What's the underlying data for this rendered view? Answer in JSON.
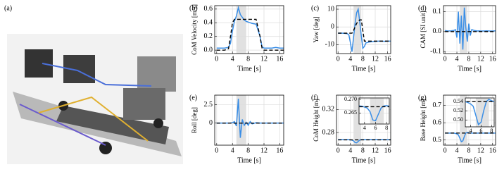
{
  "photo_label": "(a)",
  "chart_data": [
    {
      "type": "line",
      "panel_label": "(b)",
      "ylabel": "CoM Velocity [m/s]",
      "xlabel": "Time [s]",
      "x": [
        0,
        1,
        2,
        3,
        3.5,
        4,
        4.5,
        5,
        5.5,
        6,
        6.5,
        7,
        7.5,
        8,
        8.5,
        9,
        10,
        11,
        11.5,
        12,
        13,
        14,
        15,
        16,
        17
      ],
      "series": [
        {
          "color": "#3a8ee6",
          "dash": false,
          "values": [
            0.03,
            0.03,
            0.03,
            0.04,
            0.1,
            0.28,
            0.42,
            0.5,
            0.62,
            0.52,
            0.48,
            0.44,
            0.42,
            0.41,
            0.4,
            0.39,
            0.38,
            0.2,
            0.05,
            0.03,
            0.03,
            0.03,
            0.04,
            0.03,
            0.03
          ]
        },
        {
          "color": "#000000",
          "dash": true,
          "values": [
            0,
            0,
            0,
            0.02,
            0.2,
            0.4,
            0.45,
            0.45,
            0.45,
            0.45,
            0.45,
            0.45,
            0.45,
            0.45,
            0.45,
            0.45,
            0.45,
            0.2,
            0.03,
            0,
            0,
            0,
            0,
            0,
            0
          ]
        }
      ],
      "xlim": [
        -0.5,
        17
      ],
      "ylim": [
        -0.05,
        0.65
      ],
      "xticks": [
        0,
        4,
        8,
        12,
        16
      ],
      "yticks": [
        {
          "value": 0,
          "label": "0.0"
        },
        0.2,
        0.4,
        0.6
      ],
      "highlight_x": [
        5,
        7.5
      ],
      "grid": true
    },
    {
      "type": "line",
      "panel_label": "(c)",
      "ylabel": "Yaw [deg]",
      "xlabel": "Time [s]",
      "x": [
        0,
        1,
        2,
        3,
        3.5,
        4,
        4.5,
        5,
        5.5,
        6,
        6.5,
        7,
        7.5,
        8,
        8.5,
        9,
        10,
        11,
        11.5,
        12,
        13,
        14,
        15,
        16,
        17
      ],
      "series": [
        {
          "color": "#3a8ee6",
          "dash": false,
          "values": [
            -3.5,
            -3.5,
            -3.6,
            -3.8,
            -4.5,
            -9,
            -14,
            -6,
            2,
            8,
            10,
            3,
            -5,
            -12,
            -11,
            -9,
            -8.5,
            -8.3,
            -8.2,
            -8.2,
            -8,
            -8,
            -8.1,
            -8,
            -8
          ]
        },
        {
          "color": "#000000",
          "dash": true,
          "values": [
            -3.5,
            -3.5,
            -3.5,
            -3.5,
            -3.5,
            -3.5,
            -3.5,
            -2,
            0,
            2,
            3,
            4,
            4,
            -2,
            -8,
            -8,
            -8,
            -8,
            -8,
            -8,
            -8,
            -8,
            -8,
            -8,
            -8
          ]
        }
      ],
      "xlim": [
        -0.5,
        17
      ],
      "ylim": [
        -15,
        12
      ],
      "xticks": [
        0,
        4,
        8,
        12,
        16
      ],
      "yticks": [
        -10,
        0,
        10
      ],
      "highlight_x": [
        5,
        7.5
      ],
      "grid": true
    },
    {
      "type": "line",
      "panel_label": "(d)",
      "ylabel": "CAM [SI unit]",
      "xlabel": "Time [s]",
      "x": [
        0,
        1,
        2,
        3,
        3.5,
        4,
        4.5,
        5,
        5.5,
        6,
        6.5,
        7,
        7.5,
        8,
        8.5,
        9,
        10,
        11,
        11.5,
        12,
        13,
        14,
        15,
        16,
        17
      ],
      "series": [
        {
          "color": "#3a8ee6",
          "dash": false,
          "values": [
            0.005,
            0.003,
            0.004,
            0.006,
            0.01,
            -0.03,
            0.1,
            -0.06,
            0.08,
            -0.09,
            0.12,
            0.02,
            -0.05,
            0.04,
            -0.02,
            0.01,
            0.005,
            0.003,
            0.004,
            0.003,
            0.003,
            0.004,
            0.003,
            0.003,
            0.004
          ]
        },
        {
          "color": "#000000",
          "dash": true,
          "values": [
            0,
            0,
            0,
            0,
            0,
            0,
            0,
            0,
            0,
            0,
            0,
            0,
            0,
            0,
            0,
            0,
            0,
            0,
            0,
            0,
            0,
            0,
            0,
            0,
            0
          ]
        }
      ],
      "xlim": [
        -0.5,
        17
      ],
      "ylim": [
        -0.11,
        0.13
      ],
      "xticks": [
        0,
        4,
        8,
        12,
        16
      ],
      "yticks": [
        -0.1,
        {
          "value": 0,
          "label": "0.0"
        },
        0.1
      ],
      "highlight_x": [
        5,
        7.5
      ],
      "grid": true
    },
    {
      "type": "line",
      "panel_label": "(e)",
      "ylabel": "Roll [deg]",
      "xlabel": "Time [s]",
      "x": [
        0,
        1,
        2,
        3,
        3.5,
        4,
        4.5,
        5,
        5.5,
        6,
        6.5,
        7,
        7.5,
        8,
        8.5,
        9,
        10,
        11,
        11.5,
        12,
        13,
        14,
        15,
        16,
        17
      ],
      "series": [
        {
          "color": "#3a8ee6",
          "dash": false,
          "values": [
            0,
            0,
            0,
            0,
            0.02,
            0.05,
            0.2,
            -0.4,
            3.3,
            -2,
            0.5,
            -0.3,
            0.1,
            -0.3,
            0.2,
            -0.1,
            0.05,
            0,
            0,
            0,
            0,
            0,
            0,
            0,
            0
          ]
        },
        {
          "color": "#000000",
          "dash": true,
          "values": [
            0,
            0,
            0,
            0,
            0,
            0,
            0,
            0,
            0,
            0,
            0,
            0,
            0,
            0,
            0,
            0,
            0,
            0,
            0,
            0,
            0,
            0,
            0,
            0,
            0
          ]
        }
      ],
      "xlim": [
        -0.5,
        17
      ],
      "ylim": [
        -3,
        3.8
      ],
      "xticks": [
        0,
        4,
        8,
        12,
        16
      ],
      "yticks": [
        0,
        2.5
      ],
      "highlight_x": [
        5,
        7.5
      ],
      "grid": true
    },
    {
      "type": "line",
      "panel_label": "(f)",
      "ylabel": "CoM Height [m]",
      "xlabel": "Time [s]",
      "x": [
        0,
        1,
        2,
        3,
        3.5,
        4,
        4.5,
        5,
        5.5,
        6,
        6.5,
        7,
        7.5,
        8,
        8.5,
        9,
        10,
        11,
        11.5,
        12,
        13,
        14,
        15,
        16,
        17
      ],
      "series": [
        {
          "color": "#3a8ee6",
          "dash": false,
          "values": [
            0.2676,
            0.2676,
            0.2675,
            0.2676,
            0.2675,
            0.2672,
            0.2668,
            0.2655,
            0.2625,
            0.2622,
            0.2645,
            0.2668,
            0.2676,
            0.2677,
            0.2675,
            0.2676,
            0.2676,
            0.2675,
            0.2676,
            0.2676,
            0.2675,
            0.2676,
            0.2676,
            0.2675,
            0.2676
          ]
        },
        {
          "color": "#000000",
          "dash": true,
          "values": [
            0.2673,
            0.2673,
            0.2673,
            0.2673,
            0.2673,
            0.2673,
            0.2673,
            0.2673,
            0.2673,
            0.2673,
            0.2673,
            0.2673,
            0.2673,
            0.2673,
            0.2673,
            0.2673,
            0.2673,
            0.2673,
            0.2673,
            0.2673,
            0.2673,
            0.2673,
            0.2673,
            0.2673,
            0.2673
          ]
        }
      ],
      "xlim": [
        -0.5,
        17
      ],
      "ylim": [
        0.258,
        0.345
      ],
      "xticks": [
        0,
        4,
        8,
        12,
        16
      ],
      "yticks": [
        0.28,
        0.32
      ],
      "highlight_x": [
        5,
        7.5
      ],
      "grid": true,
      "inset": {
        "xlim": [
          3,
          8.5
        ],
        "ylim": [
          0.261,
          0.2705
        ],
        "xticks": [
          4,
          6,
          8
        ],
        "yticks": [
          0.265,
          {
            "value": 0.27,
            "label": "0.270"
          }
        ]
      }
    },
    {
      "type": "line",
      "panel_label": "(g)",
      "ylabel": "Base Height [m]",
      "xlabel": "Time [s]",
      "x": [
        0,
        1,
        2,
        3,
        3.5,
        4,
        4.5,
        5,
        5.5,
        6,
        6.5,
        7,
        7.5,
        8,
        8.5,
        9,
        10,
        11,
        11.5,
        12,
        13,
        14,
        15,
        16,
        17
      ],
      "series": [
        {
          "color": "#3a8ee6",
          "dash": false,
          "values": [
            0.54,
            0.54,
            0.54,
            0.54,
            0.538,
            0.535,
            0.53,
            0.51,
            0.49,
            0.495,
            0.52,
            0.54,
            0.545,
            0.542,
            0.54,
            0.54,
            0.54,
            0.54,
            0.54,
            0.54,
            0.54,
            0.54,
            0.54,
            0.54,
            0.54
          ]
        },
        {
          "color": "#000000",
          "dash": true,
          "values": [
            0.54,
            0.54,
            0.54,
            0.54,
            0.54,
            0.54,
            0.54,
            0.54,
            0.54,
            0.54,
            0.54,
            0.54,
            0.54,
            0.54,
            0.54,
            0.54,
            0.54,
            0.54,
            0.54,
            0.54,
            0.54,
            0.54,
            0.54,
            0.54,
            0.54
          ]
        }
      ],
      "xlim": [
        -0.5,
        17
      ],
      "ylim": [
        0.47,
        0.76
      ],
      "xticks": [
        0,
        4,
        8,
        12,
        16
      ],
      "yticks": [
        0.5,
        0.6,
        0.7
      ],
      "highlight_x": [
        5,
        7.5
      ],
      "grid": true,
      "inset": {
        "xlim": [
          3,
          8.5
        ],
        "ylim": [
          0.485,
          0.548
        ],
        "xticks": [
          4,
          6,
          8
        ],
        "yticks": [
          {
            "value": 0.5,
            "label": "0.50"
          },
          {
            "value": 0.52,
            "label": "0.52"
          },
          {
            "value": 0.54,
            "label": "0.54"
          }
        ]
      }
    }
  ]
}
